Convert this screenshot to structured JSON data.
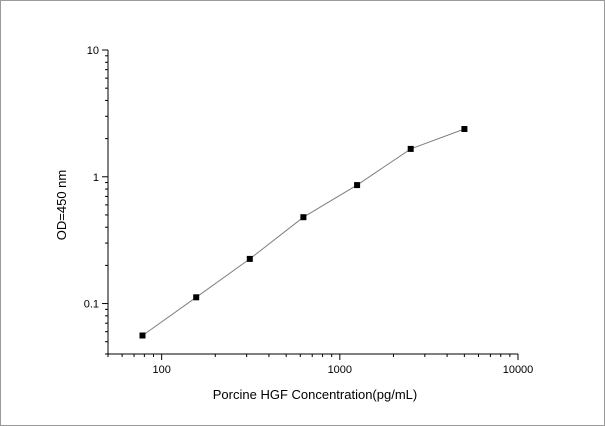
{
  "chart_data": {
    "type": "scatter",
    "xlabel": "Porcine HGF Concentration(pg/mL)",
    "ylabel": "OD=450 nm",
    "x_scale": "log",
    "y_scale": "log",
    "xlim": [
      50,
      10000
    ],
    "ylim": [
      0.04,
      10
    ],
    "x_tick_labels": [
      "100",
      "1000",
      "10000"
    ],
    "x_tick_values": [
      100,
      1000,
      10000
    ],
    "y_tick_labels": [
      "0.1",
      "1",
      "10"
    ],
    "y_tick_values": [
      0.1,
      1,
      10
    ],
    "grid": false,
    "marker": "square",
    "connected": true,
    "series": [
      {
        "x": [
          78.1,
          156.25,
          312.5,
          625,
          1250,
          2500,
          5000
        ],
        "y": [
          0.056,
          0.112,
          0.225,
          0.48,
          0.86,
          1.66,
          2.38
        ]
      }
    ],
    "colors": {
      "marker": "#000000",
      "line": "#7f7f7f",
      "axes": "#000000"
    }
  }
}
